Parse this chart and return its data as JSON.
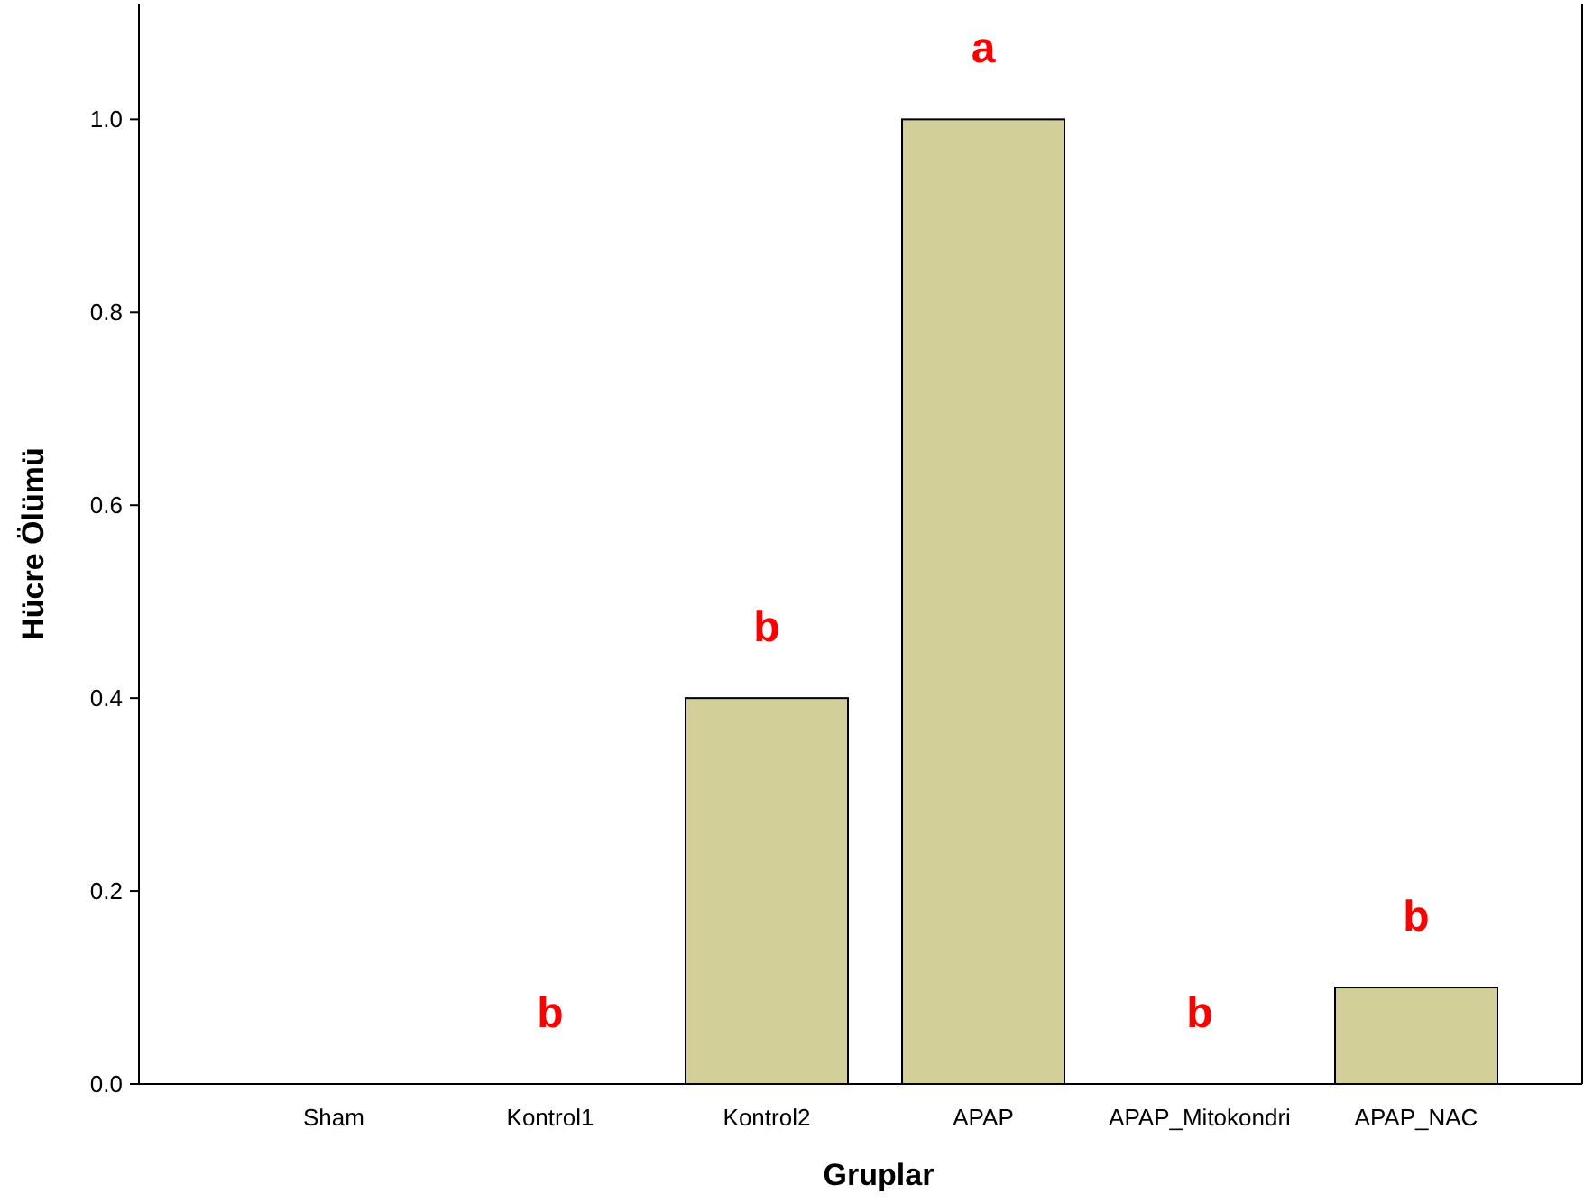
{
  "chart_data": {
    "type": "bar",
    "xlabel": "Gruplar",
    "ylabel": "Hücre Ölümü",
    "categories": [
      "Sham",
      "Kontrol1",
      "Kontrol2",
      "APAP",
      "APAP_Mitokondri",
      "APAP_NAC"
    ],
    "values": [
      0,
      0,
      0.4,
      1.0,
      0,
      0.1
    ],
    "color": "#d3cf98",
    "ylim": [
      0,
      1.12
    ],
    "yticks": [
      {
        "value": 0,
        "label": "0.0"
      },
      {
        "value": 0.2,
        "label": "0.2"
      },
      {
        "value": 0.4,
        "label": "0.4"
      },
      {
        "value": 0.6,
        "label": "0.6"
      },
      {
        "value": 0.8,
        "label": "0.8"
      },
      {
        "value": 1,
        "label": "1.0"
      }
    ],
    "grid": false,
    "annotations": [
      {
        "text": "b",
        "x": "Kontrol1",
        "y": 0
      },
      {
        "text": "b",
        "x": "Kontrol2",
        "y": 0.4
      },
      {
        "text": "a",
        "x": "APAP",
        "y": 1.0
      },
      {
        "text": "b",
        "x": "APAP_Mitokondri",
        "y": 0
      },
      {
        "text": "b",
        "x": "APAP_NAC",
        "y": 0.1
      }
    ]
  }
}
